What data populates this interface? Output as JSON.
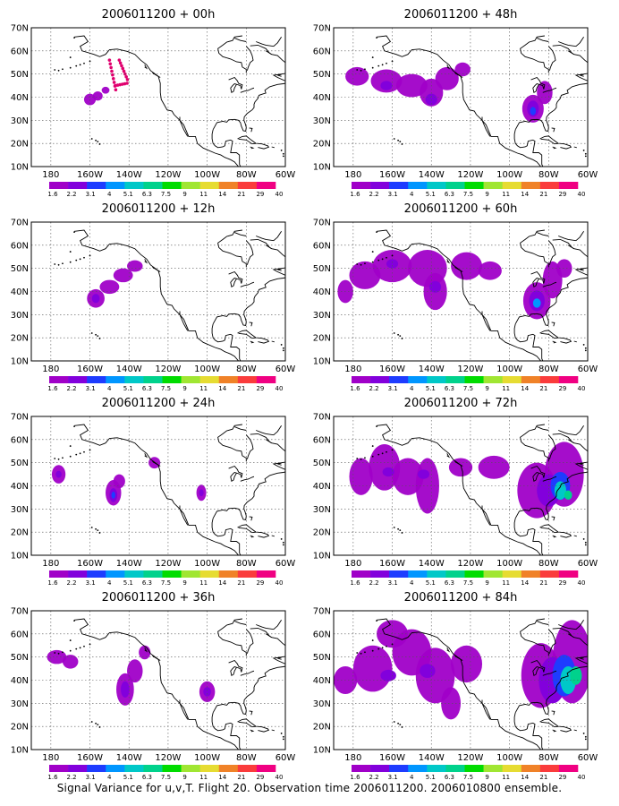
{
  "caption": "Signal Variance for u,v,T. Flight 20. Observation time 2006011200. 2006010800 ensemble.",
  "colorbar_labels": [
    "1.6",
    "2.2",
    "3.1",
    "4",
    "5.1",
    "6.3",
    "7.5",
    "9",
    "11",
    "14",
    "21",
    "29",
    "40"
  ],
  "colorbar_colors": [
    "#a000c8",
    "#8200dc",
    "#1e3cff",
    "#0096ff",
    "#00c8c8",
    "#00d28c",
    "#00dc00",
    "#a0e632",
    "#e6dc32",
    "#f08228",
    "#fa3c3c",
    "#f00082"
  ],
  "chart_data": [
    {
      "type": "heatmap",
      "title": "2006011200 + 00h",
      "x_ticks": [
        "180",
        "160W",
        "140W",
        "120W",
        "100W",
        "80W",
        "60W"
      ],
      "y_ticks": [
        "10N",
        "20N",
        "30N",
        "40N",
        "50N",
        "60N",
        "70N"
      ],
      "xlim": [
        -190,
        -60
      ],
      "ylim": [
        10,
        70
      ],
      "grid": true,
      "points": [
        [
          -158,
          39.5
        ],
        [
          -147,
          55
        ],
        [
          -143,
          53
        ]
      ],
      "blobs": [
        {
          "lon": -160,
          "lat": 39,
          "rlon": 3,
          "rlat": 2.5,
          "level": 0
        },
        {
          "lon": -156,
          "lat": 40.5,
          "rlon": 2.5,
          "rlat": 2,
          "level": 0
        },
        {
          "lon": -152,
          "lat": 43,
          "rlon": 2,
          "rlat": 1.5,
          "level": 0
        }
      ]
    },
    {
      "type": "heatmap",
      "title": "2006011200 + 12h",
      "x_ticks": [
        "180",
        "160W",
        "140W",
        "120W",
        "100W",
        "80W",
        "60W"
      ],
      "y_ticks": [
        "10N",
        "20N",
        "30N",
        "40N",
        "50N",
        "60N",
        "70N"
      ],
      "xlim": [
        -190,
        -60
      ],
      "ylim": [
        10,
        70
      ],
      "grid": true,
      "blobs": [
        {
          "lon": -157,
          "lat": 37,
          "rlon": 4.5,
          "rlat": 4,
          "level": 0
        },
        {
          "lon": -150,
          "lat": 42,
          "rlon": 5,
          "rlat": 3,
          "level": 0
        },
        {
          "lon": -143,
          "lat": 47,
          "rlon": 5,
          "rlat": 3,
          "level": 0
        },
        {
          "lon": -137,
          "lat": 51,
          "rlon": 4,
          "rlat": 2.5,
          "level": 0
        },
        {
          "lon": -157,
          "lat": 37,
          "rlon": 2,
          "rlat": 2,
          "level": 1
        }
      ]
    },
    {
      "type": "heatmap",
      "title": "2006011200 + 24h",
      "x_ticks": [
        "180",
        "160W",
        "140W",
        "120W",
        "100W",
        "80W",
        "60W"
      ],
      "y_ticks": [
        "10N",
        "20N",
        "30N",
        "40N",
        "50N",
        "60N",
        "70N"
      ],
      "xlim": [
        -190,
        -60
      ],
      "ylim": [
        10,
        70
      ],
      "grid": true,
      "blobs": [
        {
          "lon": -176,
          "lat": 45,
          "rlon": 3.5,
          "rlat": 4,
          "level": 0
        },
        {
          "lon": -176,
          "lat": 45,
          "rlon": 1.5,
          "rlat": 1.5,
          "level": 1
        },
        {
          "lon": -148,
          "lat": 37,
          "rlon": 4,
          "rlat": 5.5,
          "level": 0
        },
        {
          "lon": -145,
          "lat": 42,
          "rlon": 3,
          "rlat": 3,
          "level": 0
        },
        {
          "lon": -148,
          "lat": 36,
          "rlon": 2,
          "rlat": 3,
          "level": 1
        },
        {
          "lon": -148,
          "lat": 36,
          "rlon": 1,
          "rlat": 1.5,
          "level": 2
        },
        {
          "lon": -127,
          "lat": 50,
          "rlon": 3,
          "rlat": 2.5,
          "level": 0
        },
        {
          "lon": -103,
          "lat": 37,
          "rlon": 2.5,
          "rlat": 3.5,
          "level": 0
        },
        {
          "lon": -103,
          "lat": 37,
          "rlon": 1.2,
          "rlat": 1.5,
          "level": 1
        }
      ]
    },
    {
      "type": "heatmap",
      "title": "2006011200 + 36h",
      "x_ticks": [
        "180",
        "160W",
        "140W",
        "120W",
        "100W",
        "80W",
        "60W"
      ],
      "y_ticks": [
        "10N",
        "20N",
        "30N",
        "40N",
        "50N",
        "60N",
        "70N"
      ],
      "xlim": [
        -190,
        -60
      ],
      "ylim": [
        10,
        70
      ],
      "grid": true,
      "blobs": [
        {
          "lon": -177,
          "lat": 50,
          "rlon": 5,
          "rlat": 3,
          "level": 0
        },
        {
          "lon": -170,
          "lat": 48,
          "rlon": 4,
          "rlat": 3,
          "level": 0
        },
        {
          "lon": -142,
          "lat": 36,
          "rlon": 4.5,
          "rlat": 7,
          "level": 0
        },
        {
          "lon": -137,
          "lat": 44,
          "rlon": 4,
          "rlat": 5,
          "level": 0
        },
        {
          "lon": -132,
          "lat": 52,
          "rlon": 3,
          "rlat": 3,
          "level": 0
        },
        {
          "lon": -142,
          "lat": 36,
          "rlon": 2.2,
          "rlat": 3.5,
          "level": 1
        },
        {
          "lon": -100,
          "lat": 35,
          "rlon": 4,
          "rlat": 4.5,
          "level": 0
        },
        {
          "lon": -100,
          "lat": 35,
          "rlon": 2,
          "rlat": 2,
          "level": 1
        }
      ]
    },
    {
      "type": "heatmap",
      "title": "2006011200 + 48h",
      "x_ticks": [
        "180",
        "160W",
        "140W",
        "120W",
        "100W",
        "80W",
        "60W"
      ],
      "y_ticks": [
        "10N",
        "20N",
        "30N",
        "40N",
        "50N",
        "60N",
        "70N"
      ],
      "xlim": [
        -190,
        -60
      ],
      "ylim": [
        10,
        70
      ],
      "grid": true,
      "blobs": [
        {
          "lon": -178,
          "lat": 49,
          "rlon": 6,
          "rlat": 4,
          "level": 0
        },
        {
          "lon": -163,
          "lat": 47,
          "rlon": 8,
          "rlat": 5,
          "level": 0
        },
        {
          "lon": -150,
          "lat": 45,
          "rlon": 8,
          "rlat": 5,
          "level": 0
        },
        {
          "lon": -140,
          "lat": 42,
          "rlon": 6,
          "rlat": 6,
          "level": 0
        },
        {
          "lon": -132,
          "lat": 48,
          "rlon": 6,
          "rlat": 5,
          "level": 0
        },
        {
          "lon": -124,
          "lat": 52,
          "rlon": 4,
          "rlat": 3,
          "level": 0
        },
        {
          "lon": -163,
          "lat": 45,
          "rlon": 3,
          "rlat": 2,
          "level": 1
        },
        {
          "lon": -140,
          "lat": 39,
          "rlon": 3,
          "rlat": 2.5,
          "level": 1
        },
        {
          "lon": -88,
          "lat": 35,
          "rlon": 5.5,
          "rlat": 6,
          "level": 0
        },
        {
          "lon": -82,
          "lat": 42,
          "rlon": 4,
          "rlat": 5,
          "level": 0
        },
        {
          "lon": -88,
          "lat": 35,
          "rlon": 3,
          "rlat": 3.5,
          "level": 1
        },
        {
          "lon": -88,
          "lat": 34,
          "rlon": 1.5,
          "rlat": 1.8,
          "level": 2
        }
      ]
    },
    {
      "type": "heatmap",
      "title": "2006011200 + 60h",
      "x_ticks": [
        "180",
        "160W",
        "140W",
        "120W",
        "100W",
        "80W",
        "60W"
      ],
      "y_ticks": [
        "10N",
        "20N",
        "30N",
        "40N",
        "50N",
        "60N",
        "70N"
      ],
      "xlim": [
        -190,
        -60
      ],
      "ylim": [
        10,
        70
      ],
      "grid": true,
      "blobs": [
        {
          "lon": -184,
          "lat": 40,
          "rlon": 4,
          "rlat": 5,
          "level": 0
        },
        {
          "lon": -174,
          "lat": 47,
          "rlon": 8,
          "rlat": 6,
          "level": 0
        },
        {
          "lon": -160,
          "lat": 51,
          "rlon": 10,
          "rlat": 7,
          "level": 0
        },
        {
          "lon": -142,
          "lat": 50,
          "rlon": 10,
          "rlat": 8,
          "level": 0
        },
        {
          "lon": -138,
          "lat": 40,
          "rlon": 6,
          "rlat": 8,
          "level": 0
        },
        {
          "lon": -122,
          "lat": 51,
          "rlon": 8,
          "rlat": 6,
          "level": 0
        },
        {
          "lon": -110,
          "lat": 49,
          "rlon": 6,
          "rlat": 4,
          "level": 0
        },
        {
          "lon": -160,
          "lat": 52,
          "rlon": 3,
          "rlat": 2,
          "level": 1
        },
        {
          "lon": -138,
          "lat": 42,
          "rlon": 3,
          "rlat": 2.5,
          "level": 1
        },
        {
          "lon": -86,
          "lat": 36,
          "rlon": 7,
          "rlat": 8,
          "level": 0
        },
        {
          "lon": -78,
          "lat": 45,
          "rlon": 5,
          "rlat": 8,
          "level": 0
        },
        {
          "lon": -72,
          "lat": 50,
          "rlon": 4,
          "rlat": 4,
          "level": 0
        },
        {
          "lon": -86,
          "lat": 36,
          "rlon": 4,
          "rlat": 4.5,
          "level": 1
        },
        {
          "lon": -86,
          "lat": 35,
          "rlon": 2,
          "rlat": 2,
          "level": 3
        }
      ]
    },
    {
      "type": "heatmap",
      "title": "2006011200 + 72h",
      "x_ticks": [
        "180",
        "160W",
        "140W",
        "120W",
        "100W",
        "80W",
        "60W"
      ],
      "y_ticks": [
        "10N",
        "20N",
        "30N",
        "40N",
        "50N",
        "60N",
        "70N"
      ],
      "xlim": [
        -190,
        -60
      ],
      "ylim": [
        10,
        70
      ],
      "grid": true,
      "blobs": [
        {
          "lon": -176,
          "lat": 44,
          "rlon": 6,
          "rlat": 8,
          "level": 0
        },
        {
          "lon": -164,
          "lat": 48,
          "rlon": 8,
          "rlat": 10,
          "level": 0
        },
        {
          "lon": -152,
          "lat": 44,
          "rlon": 8,
          "rlat": 8,
          "level": 0
        },
        {
          "lon": -142,
          "lat": 40,
          "rlon": 6,
          "rlat": 12,
          "level": 0
        },
        {
          "lon": -125,
          "lat": 48,
          "rlon": 6,
          "rlat": 4,
          "level": 0
        },
        {
          "lon": -108,
          "lat": 48,
          "rlon": 8,
          "rlat": 5,
          "level": 0
        },
        {
          "lon": -162,
          "lat": 46,
          "rlon": 3,
          "rlat": 2,
          "level": 1
        },
        {
          "lon": -144,
          "lat": 45,
          "rlon": 3,
          "rlat": 2,
          "level": 1
        },
        {
          "lon": -86,
          "lat": 38,
          "rlon": 10,
          "rlat": 12,
          "level": 0
        },
        {
          "lon": -72,
          "lat": 45,
          "rlon": 10,
          "rlat": 14,
          "level": 0
        },
        {
          "lon": -80,
          "lat": 38,
          "rlon": 6,
          "rlat": 7,
          "level": 1
        },
        {
          "lon": -74,
          "lat": 40,
          "rlon": 5,
          "rlat": 6,
          "level": 2
        },
        {
          "lon": -74,
          "lat": 38,
          "rlon": 3,
          "rlat": 4,
          "level": 4
        },
        {
          "lon": -70,
          "lat": 36,
          "rlon": 2,
          "rlat": 2,
          "level": 5
        }
      ]
    },
    {
      "type": "heatmap",
      "title": "2006011200 + 84h",
      "x_ticks": [
        "180",
        "160W",
        "140W",
        "120W",
        "100W",
        "80W",
        "60W"
      ],
      "y_ticks": [
        "10N",
        "20N",
        "30N",
        "40N",
        "50N",
        "60N",
        "70N"
      ],
      "xlim": [
        -190,
        -60
      ],
      "ylim": [
        10,
        70
      ],
      "grid": true,
      "blobs": [
        {
          "lon": -184,
          "lat": 40,
          "rlon": 6,
          "rlat": 6,
          "level": 0
        },
        {
          "lon": -170,
          "lat": 45,
          "rlon": 10,
          "rlat": 10,
          "level": 0
        },
        {
          "lon": -160,
          "lat": 60,
          "rlon": 8,
          "rlat": 6,
          "level": 0
        },
        {
          "lon": -150,
          "lat": 52,
          "rlon": 10,
          "rlat": 10,
          "level": 0
        },
        {
          "lon": -138,
          "lat": 42,
          "rlon": 10,
          "rlat": 12,
          "level": 0
        },
        {
          "lon": -130,
          "lat": 30,
          "rlon": 5,
          "rlat": 7,
          "level": 0
        },
        {
          "lon": -122,
          "lat": 47,
          "rlon": 8,
          "rlat": 8,
          "level": 0
        },
        {
          "lon": -162,
          "lat": 42,
          "rlon": 4,
          "rlat": 2.5,
          "level": 1
        },
        {
          "lon": -142,
          "lat": 44,
          "rlon": 4,
          "rlat": 3,
          "level": 1
        },
        {
          "lon": -84,
          "lat": 42,
          "rlon": 10,
          "rlat": 14,
          "level": 0
        },
        {
          "lon": -68,
          "lat": 48,
          "rlon": 10,
          "rlat": 18,
          "level": 0
        },
        {
          "lon": -78,
          "lat": 40,
          "rlon": 7,
          "rlat": 10,
          "level": 1
        },
        {
          "lon": -72,
          "lat": 42,
          "rlon": 6,
          "rlat": 9,
          "level": 2
        },
        {
          "lon": -70,
          "lat": 40,
          "rlon": 4,
          "rlat": 6,
          "level": 4
        },
        {
          "lon": -66,
          "lat": 42,
          "rlon": 3,
          "rlat": 4,
          "level": 5
        }
      ]
    }
  ]
}
